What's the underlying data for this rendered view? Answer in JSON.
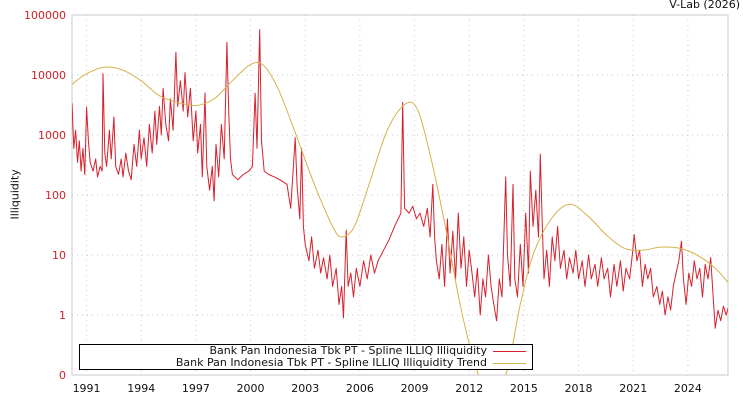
{
  "chart_data": {
    "type": "line",
    "credit": "V-Lab (2026)",
    "ylabel": "Illiquidity",
    "yscale": "log",
    "ylim": [
      0.1,
      100000
    ],
    "ytick_values": [
      100000,
      10000,
      1000,
      100,
      10,
      1,
      0.1
    ],
    "ytick_labels": [
      "100000",
      "10000",
      "1000",
      "100",
      "10",
      "1",
      "0"
    ],
    "xlim": [
      1990.2,
      2026.2
    ],
    "xtick_labels": [
      "1991",
      "1994",
      "1997",
      "2000",
      "2003",
      "2006",
      "2009",
      "2012",
      "2015",
      "2018",
      "2021",
      "2024"
    ],
    "grid": true,
    "legend_position": "bottom-left",
    "series": [
      {
        "name": "Bank Pan Indonesia Tbk PT - Spline ILLIQ Illiquidity",
        "color": "#d7202c",
        "points": [
          [
            1990.2,
            3400
          ],
          [
            1990.3,
            600
          ],
          [
            1990.4,
            1200
          ],
          [
            1990.5,
            350
          ],
          [
            1990.6,
            800
          ],
          [
            1990.7,
            250
          ],
          [
            1990.8,
            600
          ],
          [
            1990.9,
            220
          ],
          [
            1991.0,
            2900
          ],
          [
            1991.1,
            800
          ],
          [
            1991.2,
            350
          ],
          [
            1991.35,
            250
          ],
          [
            1991.5,
            400
          ],
          [
            1991.6,
            200
          ],
          [
            1991.75,
            300
          ],
          [
            1991.85,
            250
          ],
          [
            1991.9,
            10500
          ],
          [
            1992.0,
            500
          ],
          [
            1992.1,
            300
          ],
          [
            1992.25,
            1200
          ],
          [
            1992.35,
            400
          ],
          [
            1992.5,
            2000
          ],
          [
            1992.6,
            300
          ],
          [
            1992.75,
            220
          ],
          [
            1992.9,
            400
          ],
          [
            1993.0,
            200
          ],
          [
            1993.15,
            500
          ],
          [
            1993.3,
            250
          ],
          [
            1993.45,
            180
          ],
          [
            1993.6,
            700
          ],
          [
            1993.75,
            300
          ],
          [
            1993.9,
            1200
          ],
          [
            1994.0,
            400
          ],
          [
            1994.15,
            900
          ],
          [
            1994.3,
            300
          ],
          [
            1994.45,
            1500
          ],
          [
            1994.6,
            500
          ],
          [
            1994.75,
            2500
          ],
          [
            1994.85,
            700
          ],
          [
            1995.0,
            3000
          ],
          [
            1995.1,
            1000
          ],
          [
            1995.2,
            6000
          ],
          [
            1995.35,
            1500
          ],
          [
            1995.5,
            800
          ],
          [
            1995.6,
            4000
          ],
          [
            1995.75,
            1200
          ],
          [
            1995.9,
            24000
          ],
          [
            1996.0,
            3000
          ],
          [
            1996.15,
            8000
          ],
          [
            1996.3,
            2500
          ],
          [
            1996.4,
            11000
          ],
          [
            1996.55,
            2000
          ],
          [
            1996.7,
            6000
          ],
          [
            1996.85,
            800
          ],
          [
            1997.0,
            2500
          ],
          [
            1997.1,
            500
          ],
          [
            1997.25,
            1500
          ],
          [
            1997.35,
            200
          ],
          [
            1997.5,
            5000
          ],
          [
            1997.6,
            300
          ],
          [
            1997.75,
            120
          ],
          [
            1997.9,
            300
          ],
          [
            1998.0,
            80
          ],
          [
            1998.1,
            700
          ],
          [
            1998.25,
            200
          ],
          [
            1998.4,
            1500
          ],
          [
            1998.55,
            400
          ],
          [
            1998.7,
            35000
          ],
          [
            1998.8,
            2500
          ],
          [
            1998.9,
            400
          ],
          [
            1999.0,
            220
          ],
          [
            1999.3,
            180
          ],
          [
            1999.6,
            220
          ],
          [
            1999.9,
            250
          ],
          [
            2000.1,
            300
          ],
          [
            2000.25,
            5000
          ],
          [
            2000.35,
            600
          ],
          [
            2000.5,
            57000
          ],
          [
            2000.6,
            800
          ],
          [
            2000.75,
            250
          ],
          [
            2001.0,
            220
          ],
          [
            2001.3,
            200
          ],
          [
            2001.6,
            180
          ],
          [
            2002.0,
            150
          ],
          [
            2002.2,
            60
          ],
          [
            2002.35,
            300
          ],
          [
            2002.45,
            900
          ],
          [
            2002.55,
            150
          ],
          [
            2002.7,
            40
          ],
          [
            2002.8,
            600
          ],
          [
            2002.9,
            30
          ],
          [
            2003.0,
            15
          ],
          [
            2003.2,
            8
          ],
          [
            2003.35,
            20
          ],
          [
            2003.5,
            6
          ],
          [
            2003.7,
            12
          ],
          [
            2003.85,
            5
          ],
          [
            2004.0,
            9
          ],
          [
            2004.2,
            4
          ],
          [
            2004.35,
            10
          ],
          [
            2004.5,
            3
          ],
          [
            2004.7,
            6
          ],
          [
            2004.85,
            1.5
          ],
          [
            2005.0,
            3
          ],
          [
            2005.1,
            0.9
          ],
          [
            2005.25,
            26
          ],
          [
            2005.35,
            3
          ],
          [
            2005.5,
            5
          ],
          [
            2005.65,
            2
          ],
          [
            2005.8,
            6
          ],
          [
            2006.0,
            3
          ],
          [
            2006.2,
            8
          ],
          [
            2006.4,
            4
          ],
          [
            2006.6,
            10
          ],
          [
            2006.8,
            5
          ],
          [
            2007.0,
            8
          ],
          [
            2007.3,
            12
          ],
          [
            2007.6,
            18
          ],
          [
            2007.9,
            30
          ],
          [
            2008.1,
            40
          ],
          [
            2008.25,
            50
          ],
          [
            2008.35,
            3500
          ],
          [
            2008.45,
            60
          ],
          [
            2008.7,
            50
          ],
          [
            2008.9,
            65
          ],
          [
            2009.1,
            40
          ],
          [
            2009.3,
            50
          ],
          [
            2009.5,
            30
          ],
          [
            2009.7,
            60
          ],
          [
            2009.85,
            20
          ],
          [
            2010.0,
            150
          ],
          [
            2010.1,
            20
          ],
          [
            2010.2,
            8
          ],
          [
            2010.35,
            4
          ],
          [
            2010.5,
            15
          ],
          [
            2010.65,
            3
          ],
          [
            2010.8,
            40
          ],
          [
            2010.95,
            5
          ],
          [
            2011.1,
            25
          ],
          [
            2011.25,
            4
          ],
          [
            2011.4,
            50
          ],
          [
            2011.55,
            6
          ],
          [
            2011.7,
            20
          ],
          [
            2011.85,
            3
          ],
          [
            2012.0,
            12
          ],
          [
            2012.15,
            5
          ],
          [
            2012.3,
            2
          ],
          [
            2012.45,
            6
          ],
          [
            2012.6,
            1
          ],
          [
            2012.75,
            4
          ],
          [
            2012.9,
            2
          ],
          [
            2013.05,
            10
          ],
          [
            2013.2,
            3
          ],
          [
            2013.35,
            1.5
          ],
          [
            2013.5,
            0.8
          ],
          [
            2013.65,
            4
          ],
          [
            2013.8,
            2
          ],
          [
            2014.0,
            200
          ],
          [
            2014.1,
            10
          ],
          [
            2014.25,
            3
          ],
          [
            2014.4,
            150
          ],
          [
            2014.5,
            4
          ],
          [
            2014.65,
            2
          ],
          [
            2014.8,
            15
          ],
          [
            2014.95,
            3
          ],
          [
            2015.1,
            50
          ],
          [
            2015.25,
            5
          ],
          [
            2015.35,
            250
          ],
          [
            2015.5,
            30
          ],
          [
            2015.65,
            120
          ],
          [
            2015.8,
            20
          ],
          [
            2015.9,
            480
          ],
          [
            2016.0,
            40
          ],
          [
            2016.1,
            4
          ],
          [
            2016.25,
            12
          ],
          [
            2016.4,
            3
          ],
          [
            2016.55,
            20
          ],
          [
            2016.7,
            8
          ],
          [
            2016.85,
            30
          ],
          [
            2017.0,
            6
          ],
          [
            2017.2,
            12
          ],
          [
            2017.35,
            4
          ],
          [
            2017.5,
            9
          ],
          [
            2017.7,
            5
          ],
          [
            2017.85,
            12
          ],
          [
            2018.0,
            4
          ],
          [
            2018.2,
            8
          ],
          [
            2018.35,
            3
          ],
          [
            2018.55,
            10
          ],
          [
            2018.7,
            4
          ],
          [
            2018.9,
            7
          ],
          [
            2019.05,
            3
          ],
          [
            2019.25,
            9
          ],
          [
            2019.4,
            4
          ],
          [
            2019.6,
            6
          ],
          [
            2019.75,
            2
          ],
          [
            2019.95,
            7
          ],
          [
            2020.1,
            3
          ],
          [
            2020.3,
            8
          ],
          [
            2020.45,
            2.5
          ],
          [
            2020.6,
            6
          ],
          [
            2020.8,
            4
          ],
          [
            2020.95,
            10
          ],
          [
            2021.05,
            22
          ],
          [
            2021.2,
            8
          ],
          [
            2021.35,
            12
          ],
          [
            2021.5,
            3
          ],
          [
            2021.65,
            7
          ],
          [
            2021.8,
            4
          ],
          [
            2021.95,
            6
          ],
          [
            2022.1,
            2
          ],
          [
            2022.3,
            3
          ],
          [
            2022.45,
            1.5
          ],
          [
            2022.6,
            2.5
          ],
          [
            2022.75,
            1
          ],
          [
            2022.9,
            2
          ],
          [
            2023.05,
            1.2
          ],
          [
            2023.2,
            3
          ],
          [
            2023.35,
            5
          ],
          [
            2023.5,
            8
          ],
          [
            2023.65,
            17
          ],
          [
            2023.75,
            4
          ],
          [
            2023.9,
            1.5
          ],
          [
            2024.05,
            5
          ],
          [
            2024.2,
            3
          ],
          [
            2024.35,
            8
          ],
          [
            2024.5,
            4
          ],
          [
            2024.65,
            6
          ],
          [
            2024.8,
            2
          ],
          [
            2024.95,
            7
          ],
          [
            2025.1,
            4
          ],
          [
            2025.25,
            9
          ],
          [
            2025.35,
            3
          ],
          [
            2025.5,
            0.6
          ],
          [
            2025.65,
            1.2
          ],
          [
            2025.8,
            0.8
          ],
          [
            2025.95,
            1.4
          ],
          [
            2026.1,
            1.0
          ],
          [
            2026.2,
            1.3
          ]
        ]
      },
      {
        "name": "Bank Pan Indonesia Tbk PT - Spline ILLIQ Illiquidity Trend",
        "color": "#d4b24c",
        "points": [
          [
            1990.2,
            7000
          ],
          [
            1991,
            10500
          ],
          [
            1992,
            13500
          ],
          [
            1993,
            12000
          ],
          [
            1994,
            8000
          ],
          [
            1995,
            4500
          ],
          [
            1996,
            3500
          ],
          [
            1997,
            3100
          ],
          [
            1998,
            4000
          ],
          [
            1999,
            8000
          ],
          [
            2000,
            15000
          ],
          [
            2000.7,
            14500
          ],
          [
            2001.5,
            6000
          ],
          [
            2002.5,
            1000
          ],
          [
            2003.5,
            150
          ],
          [
            2004.5,
            30
          ],
          [
            2005,
            20
          ],
          [
            2005.7,
            30
          ],
          [
            2006.5,
            150
          ],
          [
            2007.5,
            1200
          ],
          [
            2008.5,
            3300
          ],
          [
            2009.2,
            2500
          ],
          [
            2010,
            300
          ],
          [
            2010.8,
            20
          ],
          [
            2011.5,
            1.5
          ],
          [
            2012.2,
            0.2
          ],
          [
            2013,
            0.05
          ],
          [
            2014,
            0.1
          ],
          [
            2014.8,
            1.5
          ],
          [
            2015.5,
            10
          ],
          [
            2016.5,
            40
          ],
          [
            2017.5,
            70
          ],
          [
            2018.5,
            45
          ],
          [
            2019.5,
            22
          ],
          [
            2020.5,
            13
          ],
          [
            2021.5,
            12
          ],
          [
            2022.5,
            13.5
          ],
          [
            2023.5,
            13
          ],
          [
            2024.5,
            10
          ],
          [
            2025.5,
            6
          ],
          [
            2026.2,
            3.5
          ]
        ]
      }
    ]
  }
}
